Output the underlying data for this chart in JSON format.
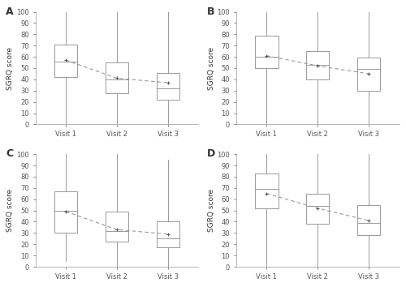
{
  "panels": [
    {
      "label": "A",
      "visits": [
        "Visit 1",
        "Visit 2",
        "Visit 3"
      ],
      "whisker_low": [
        0,
        0,
        0
      ],
      "whisker_high": [
        100,
        100,
        100
      ],
      "q1": [
        42,
        28,
        22
      ],
      "median": [
        56,
        40,
        32
      ],
      "q3": [
        71,
        55,
        46
      ],
      "mean": [
        57,
        41,
        37
      ]
    },
    {
      "label": "B",
      "visits": [
        "Visit 1",
        "Visit 2",
        "Visit 3"
      ],
      "whisker_low": [
        0,
        0,
        0
      ],
      "whisker_high": [
        100,
        100,
        100
      ],
      "q1": [
        50,
        40,
        30
      ],
      "median": [
        60,
        53,
        49
      ],
      "q3": [
        79,
        65,
        59
      ],
      "mean": [
        61,
        52,
        45
      ]
    },
    {
      "label": "C",
      "visits": [
        "Visit 1",
        "Visit 2",
        "Visit 3"
      ],
      "whisker_low": [
        5,
        0,
        0
      ],
      "whisker_high": [
        100,
        100,
        95
      ],
      "q1": [
        30,
        22,
        17
      ],
      "median": [
        50,
        32,
        25
      ],
      "q3": [
        67,
        49,
        40
      ],
      "mean": [
        49,
        33,
        29
      ]
    },
    {
      "label": "D",
      "visits": [
        "Visit 1",
        "Visit 2",
        "Visit 3"
      ],
      "whisker_low": [
        0,
        0,
        0
      ],
      "whisker_high": [
        100,
        100,
        100
      ],
      "q1": [
        52,
        38,
        28
      ],
      "median": [
        69,
        54,
        39
      ],
      "q3": [
        83,
        65,
        55
      ],
      "mean": [
        65,
        52,
        41
      ]
    }
  ],
  "ylabel": "SGRQ score",
  "ylim": [
    0,
    100
  ],
  "yticks": [
    0,
    10,
    20,
    30,
    40,
    50,
    60,
    70,
    80,
    90,
    100
  ],
  "box_color": "white",
  "box_edge_color": "#999999",
  "whisker_color": "#999999",
  "median_color": "#999999",
  "mean_marker": "+",
  "mean_color": "#555555",
  "dashed_line_color": "#999999",
  "spine_color": "#aaaaaa",
  "background_color": "white",
  "tick_color": "#555555",
  "label_color": "#333333"
}
